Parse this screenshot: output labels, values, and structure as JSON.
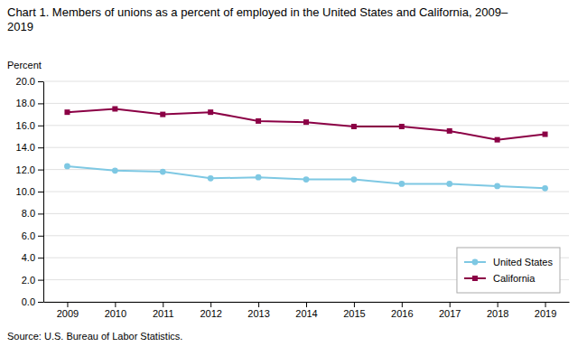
{
  "chart_data": {
    "type": "line",
    "title": "Chart 1. Members of unions as a percent of employed in the United States and California, 2009–\n2019",
    "y_label": "Percent",
    "source": "Source: U.S. Bureau of Labor Statistics.",
    "x": [
      2009,
      2010,
      2011,
      2012,
      2013,
      2014,
      2015,
      2016,
      2017,
      2018,
      2019
    ],
    "series": [
      {
        "name": "United States",
        "color": "#7EC8E3",
        "marker": "circle",
        "values": [
          12.3,
          11.9,
          11.8,
          11.2,
          11.3,
          11.1,
          11.1,
          10.7,
          10.7,
          10.5,
          10.3
        ]
      },
      {
        "name": "California",
        "color": "#8B0045",
        "marker": "square",
        "values": [
          17.2,
          17.5,
          17.0,
          17.2,
          16.4,
          16.3,
          15.9,
          15.9,
          15.5,
          14.7,
          15.2
        ]
      }
    ],
    "xlim": [
      2008.5,
      2019.5
    ],
    "xticks": [
      2009,
      2010,
      2011,
      2012,
      2013,
      2014,
      2015,
      2016,
      2017,
      2018,
      2019
    ],
    "ylim": [
      0.0,
      20.0
    ],
    "yticks": [
      {
        "value": 0.0,
        "label": "0.0"
      },
      {
        "value": 2.0,
        "label": "2.0"
      },
      {
        "value": 4.0,
        "label": "4.0"
      },
      {
        "value": 6.0,
        "label": "6.0"
      },
      {
        "value": 8.0,
        "label": "8.0"
      },
      {
        "value": 10.0,
        "label": "10.0"
      },
      {
        "value": 12.0,
        "label": "12.0"
      },
      {
        "value": 14.0,
        "label": "14.0"
      },
      {
        "value": 16.0,
        "label": "16.0"
      },
      {
        "value": 18.0,
        "label": "18.0"
      },
      {
        "value": 20.0,
        "label": "20.0"
      }
    ],
    "grid": true,
    "legend": "lower right"
  }
}
